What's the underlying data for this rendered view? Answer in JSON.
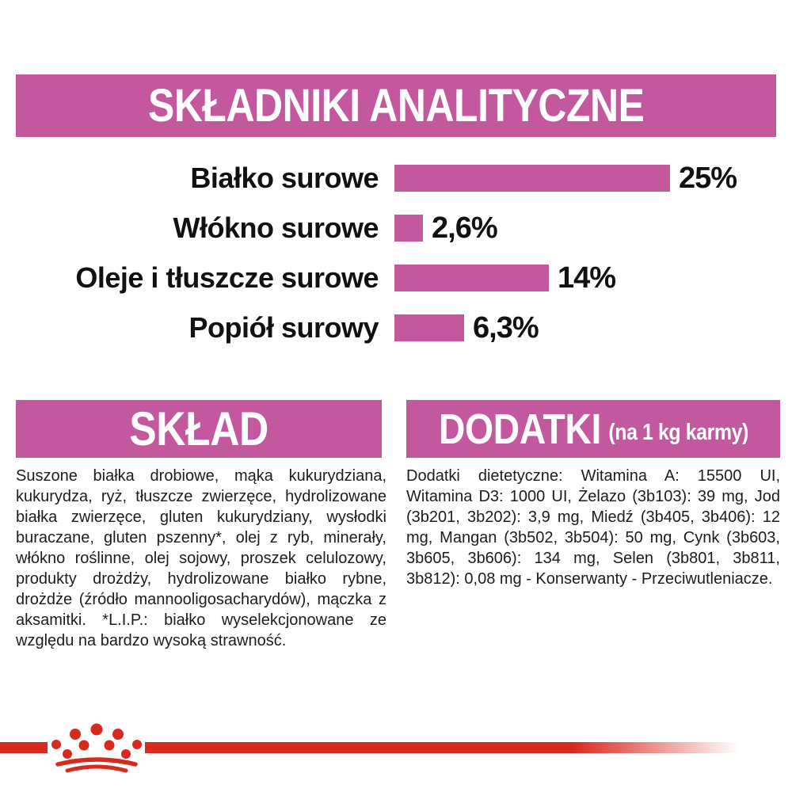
{
  "colors": {
    "pink": "#c4589e",
    "red": "#d8291f",
    "text": "#1c1c1c",
    "banner_text": "#ffffff"
  },
  "header": {
    "title": "SKŁADNIKI ANALITYCZNE"
  },
  "chart_data": {
    "type": "bar",
    "orientation": "horizontal",
    "title": "SKŁADNIKI ANALITYCZNE",
    "categories": [
      "Białko surowe",
      "Włókno surowe",
      "Oleje i tłuszcze surowe",
      "Popiół surowy"
    ],
    "values": [
      25,
      2.6,
      14,
      6.3
    ],
    "value_labels": [
      "25%",
      "2,6%",
      "14%",
      "6,3%"
    ],
    "unit": "%",
    "xlim": [
      0,
      25
    ],
    "bar_color": "#c4589e",
    "grid": false,
    "legend": false
  },
  "sklad": {
    "title": "SKŁAD",
    "body": "Suszone białka drobiowe, mąka kukurydziana, kukurydza, ryż, tłuszcze zwierzęce, hydrolizowane białka zwierzęce, gluten kukurydziany, wysłodki buraczane, gluten pszenny*, olej z ryb, minerały, włókno roślinne, olej sojowy, proszek celulozowy, produkty drożdży, hydrolizowane białko rybne, drożdże (źródło mannooligosacharydów), mączka z aksamitki. *L.I.P.: białko wyselekcjonowane ze względu na bardzo wysoką strawność."
  },
  "dodatki": {
    "title": "DODATKI",
    "title_suffix": "(na 1 kg karmy)",
    "body": "Dodatki dietetyczne: Witamina A: 15500 UI, Witamina D3: 1000 UI, Żelazo (3b103): 39 mg, Jod (3b201, 3b202): 3,9 mg, Miedź (3b405, 3b406): 12 mg, Mangan (3b502, 3b504): 50 mg, Cynk (3b603, 3b605, 3b606): 134 mg, Selen (3b801, 3b811, 3b812): 0,08 mg - Konserwanty - Przeciwutleniacze.",
    "additives": [
      {
        "name": "Witamina A",
        "value": "15500 UI"
      },
      {
        "name": "Witamina D3",
        "value": "1000 UI"
      },
      {
        "name": "Żelazo (3b103)",
        "value": "39 mg"
      },
      {
        "name": "Jod (3b201, 3b202)",
        "value": "3,9 mg"
      },
      {
        "name": "Miedź (3b405, 3b406)",
        "value": "12 mg"
      },
      {
        "name": "Mangan (3b502, 3b504)",
        "value": "50 mg"
      },
      {
        "name": "Cynk (3b603, 3b605, 3b606)",
        "value": "134 mg"
      },
      {
        "name": "Selen (3b801, 3b811, 3b812)",
        "value": "0,08 mg"
      }
    ]
  },
  "footer": {
    "logo_icon": "royal-canin-crown-icon"
  }
}
